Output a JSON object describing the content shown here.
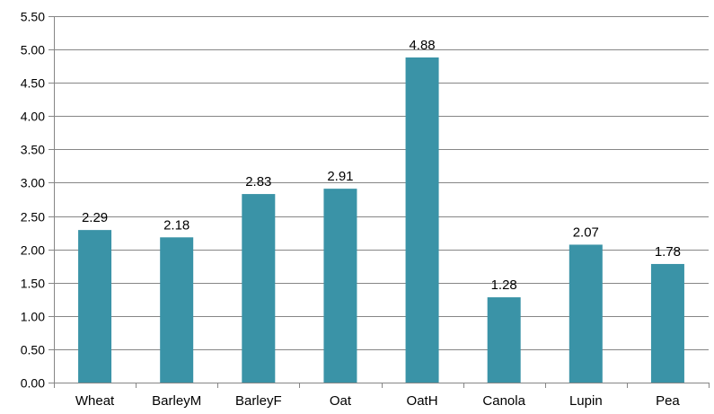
{
  "chart_data": {
    "type": "bar",
    "title": "",
    "xlabel": "",
    "ylabel": "",
    "categories": [
      "Wheat",
      "BarleyM",
      "BarleyF",
      "Oat",
      "OatH",
      "Canola",
      "Lupin",
      "Pea"
    ],
    "values": [
      2.29,
      2.18,
      2.83,
      2.91,
      4.88,
      1.28,
      2.07,
      1.78
    ],
    "data_labels": [
      "2.29",
      "2.18",
      "2.83",
      "2.91",
      "4.88",
      "1.28",
      "2.07",
      "1.78"
    ],
    "ylim": [
      0,
      5.5
    ],
    "yticks": [
      "0.00",
      "0.50",
      "1.00",
      "1.50",
      "2.00",
      "2.50",
      "3.00",
      "3.50",
      "4.00",
      "4.50",
      "5.00",
      "5.50"
    ],
    "grid": "horizontal",
    "legend": "none",
    "bar_color": "#3a93a7"
  }
}
